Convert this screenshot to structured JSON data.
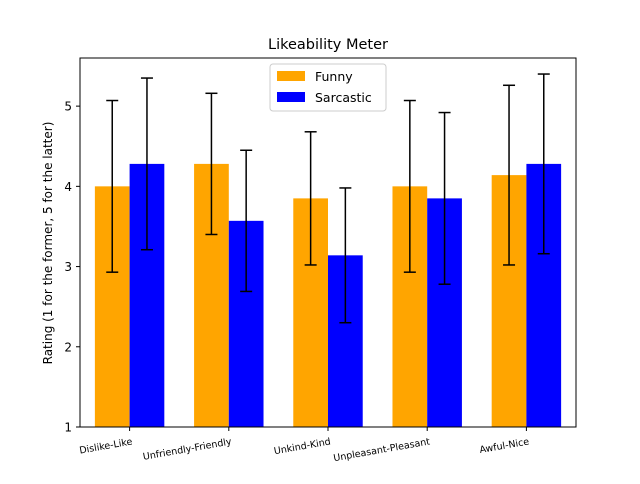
{
  "chart_data": {
    "type": "bar",
    "title": "Likeability Meter",
    "xlabel": "",
    "ylabel": "Rating (1 for the former, 5 for the latter)",
    "ylim": [
      1,
      5.6
    ],
    "yticks": [
      1,
      2,
      3,
      4,
      5
    ],
    "categories": [
      "Dislike-Like",
      "Unfriendly-Friendly",
      "Unkind-Kind",
      "Unpleasant-Pleasant",
      "Awful-Nice"
    ],
    "series": [
      {
        "name": "Funny",
        "color": "#FFA500",
        "values": [
          4.0,
          4.28,
          3.85,
          4.0,
          4.14
        ],
        "errors": [
          1.07,
          0.88,
          0.83,
          1.07,
          1.12
        ]
      },
      {
        "name": "Sarcastic",
        "color": "#0000FF",
        "values": [
          4.28,
          3.57,
          3.14,
          3.85,
          4.28
        ],
        "errors": [
          1.07,
          0.88,
          0.84,
          1.07,
          1.12
        ]
      }
    ],
    "legend_position": "top-center",
    "grid": false
  }
}
